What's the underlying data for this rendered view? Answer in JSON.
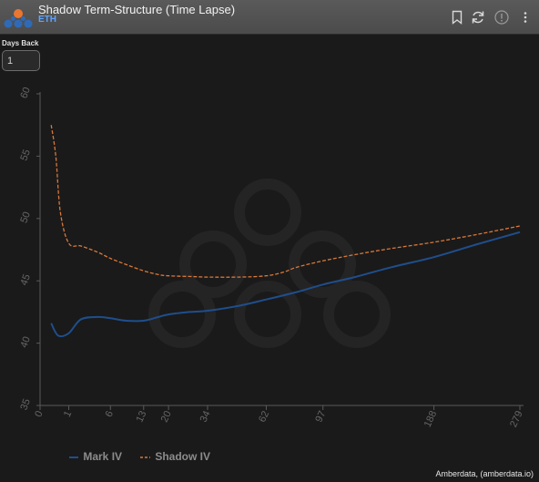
{
  "header": {
    "title": "Shadow Term-Structure (Time Lapse)",
    "subtitle": "ETH",
    "icons": [
      "bookmark-icon",
      "refresh-icon",
      "info-icon",
      "more-vertical-icon"
    ]
  },
  "controls": {
    "days_back_label": "Days Back",
    "days_back_value": "1"
  },
  "chart_data": {
    "type": "line",
    "title": "",
    "xlabel": "",
    "ylabel": "",
    "ylim": [
      35,
      60
    ],
    "yticks": [
      35,
      40,
      45,
      50,
      55,
      60
    ],
    "x_scale": "sqrt",
    "xticks": [
      0,
      1,
      6,
      13,
      20,
      34,
      62,
      97,
      188,
      279
    ],
    "xtick_labels": [
      "0",
      "1",
      "6",
      "13",
      "20",
      "34",
      "62",
      "97",
      "188",
      "279"
    ],
    "grid": false,
    "legend": "bottom-left",
    "series": [
      {
        "name": "Mark IV",
        "color": "#1f4e8c",
        "style": "solid",
        "x": [
          0.15,
          0.4,
          1,
          2,
          4,
          6,
          9,
          13,
          17,
          20,
          27,
          34,
          48,
          62,
          80,
          97,
          120,
          150,
          188,
          230,
          279
        ],
        "y": [
          41.6,
          40.6,
          40.8,
          41.9,
          42.1,
          42.0,
          41.8,
          41.8,
          42.1,
          42.3,
          42.5,
          42.6,
          43.0,
          43.5,
          44.1,
          44.7,
          45.3,
          46.1,
          46.9,
          47.9,
          48.9
        ]
      },
      {
        "name": "Shadow IV",
        "color": "#d9773a",
        "style": "dashed",
        "x": [
          0.15,
          0.3,
          0.5,
          1,
          2,
          4,
          6,
          9,
          13,
          17,
          20,
          27,
          34,
          48,
          62,
          72,
          80,
          97,
          120,
          150,
          188,
          230,
          279
        ],
        "y": [
          57.5,
          55.0,
          50.5,
          48.0,
          47.8,
          47.3,
          46.8,
          46.3,
          45.8,
          45.5,
          45.4,
          45.35,
          45.3,
          45.3,
          45.4,
          45.7,
          46.1,
          46.6,
          47.1,
          47.6,
          48.1,
          48.7,
          49.4
        ]
      }
    ]
  },
  "footer": {
    "credit": "Amberdata, (amberdata.io)"
  }
}
